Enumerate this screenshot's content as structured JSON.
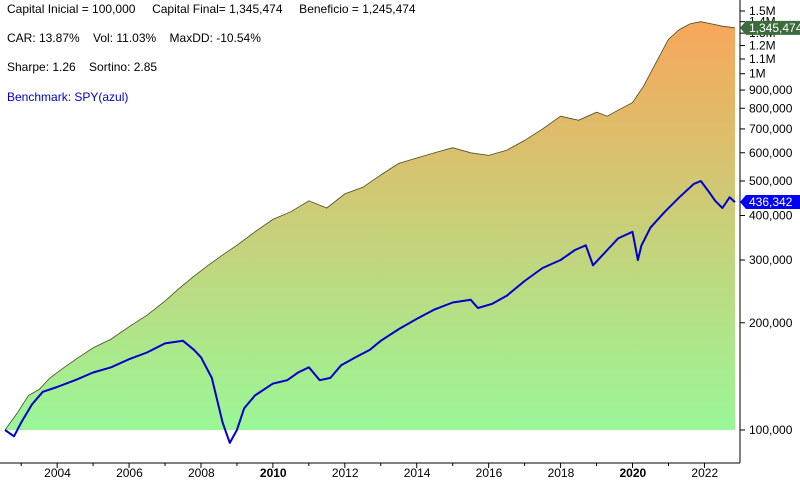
{
  "stats": {
    "line1": "Capital Inicial = 100,000     Capital Final= 1,345,474     Beneficio = 1,245,474",
    "line2": "CAR: 13.87%    Vol: 11.03%    MaxDD: -10.54%",
    "line3": "Sharpe: 1.26    Sortino: 2.85",
    "benchmark": "Benchmark: SPY(azul)"
  },
  "colors": {
    "equity_top": "#f7a75a",
    "equity_bottom": "#9af797",
    "equity_outline": "#4a4a2a",
    "benchmark_line": "#0000cc",
    "equity_label_bg": "#3c6b3c",
    "benchmark_label_bg": "#0000ff"
  },
  "chart_data": {
    "type": "area",
    "yscale": "log",
    "ylim": [
      90000,
      1500000
    ],
    "xlim": [
      2002.55,
      2022.85
    ],
    "yticks": [
      100000,
      200000,
      300000,
      400000,
      500000,
      600000,
      700000,
      800000,
      900000,
      1000000,
      1100000,
      1200000,
      1300000,
      1400000,
      1500000
    ],
    "ytick_labels": [
      "100,000",
      "200,000",
      "300,000",
      "400,000",
      "500,000",
      "600,000",
      "700,000",
      "800,000",
      "900,000",
      "1M",
      "1.1M",
      "1.2M",
      "1.3M",
      "1.4M",
      "1.5M"
    ],
    "xticks": [
      2004,
      2006,
      2008,
      2010,
      2012,
      2014,
      2016,
      2018,
      2020,
      2022
    ],
    "xtick_labels": [
      "2004",
      "2006",
      "2008",
      "2010",
      "2012",
      "2014",
      "2016",
      "2018",
      "2020",
      "2022"
    ],
    "xtick_bold": [
      "2010",
      "2020"
    ],
    "series": [
      {
        "name": "",
        "last_label": "1,345,474",
        "x": [
          2002.55,
          2002.9,
          2003.2,
          2003.5,
          2003.8,
          2004.2,
          2004.6,
          2005.0,
          2005.5,
          2006.0,
          2006.5,
          2007.0,
          2007.4,
          2007.8,
          2008.2,
          2008.6,
          2009.0,
          2009.5,
          2010.0,
          2010.5,
          2011.0,
          2011.5,
          2012.0,
          2012.5,
          2013.0,
          2013.5,
          2014.0,
          2014.5,
          2015.0,
          2015.5,
          2016.0,
          2016.5,
          2017.0,
          2017.5,
          2018.0,
          2018.5,
          2019.0,
          2019.3,
          2019.6,
          2020.0,
          2020.3,
          2020.6,
          2021.0,
          2021.3,
          2021.6,
          2021.9,
          2022.2,
          2022.5,
          2022.85
        ],
        "y": [
          100000,
          112000,
          125000,
          130000,
          140000,
          150000,
          160000,
          170000,
          180000,
          195000,
          210000,
          230000,
          250000,
          270000,
          290000,
          310000,
          330000,
          360000,
          390000,
          410000,
          440000,
          420000,
          460000,
          480000,
          520000,
          560000,
          580000,
          600000,
          620000,
          600000,
          590000,
          610000,
          650000,
          700000,
          760000,
          740000,
          780000,
          760000,
          790000,
          830000,
          920000,
          1050000,
          1250000,
          1330000,
          1380000,
          1400000,
          1380000,
          1360000,
          1345474
        ]
      },
      {
        "name": "SPY",
        "last_label": "436,342",
        "x": [
          2002.55,
          2002.8,
          2003.0,
          2003.3,
          2003.6,
          2004.0,
          2004.5,
          2005.0,
          2005.5,
          2006.0,
          2006.5,
          2007.0,
          2007.5,
          2007.8,
          2008.0,
          2008.3,
          2008.6,
          2008.8,
          2009.0,
          2009.2,
          2009.5,
          2010.0,
          2010.4,
          2010.7,
          2011.0,
          2011.3,
          2011.6,
          2011.9,
          2012.3,
          2012.7,
          2013.0,
          2013.5,
          2014.0,
          2014.5,
          2015.0,
          2015.5,
          2015.7,
          2016.1,
          2016.5,
          2017.0,
          2017.5,
          2018.0,
          2018.4,
          2018.7,
          2018.9,
          2019.3,
          2019.6,
          2020.0,
          2020.15,
          2020.25,
          2020.5,
          2020.9,
          2021.3,
          2021.7,
          2021.9,
          2022.1,
          2022.3,
          2022.5,
          2022.7,
          2022.85
        ],
        "y": [
          100000,
          96000,
          105000,
          118000,
          128000,
          132000,
          138000,
          145000,
          150000,
          158000,
          165000,
          175000,
          178000,
          168000,
          160000,
          140000,
          105000,
          92000,
          100000,
          115000,
          125000,
          135000,
          138000,
          145000,
          150000,
          138000,
          140000,
          152000,
          160000,
          168000,
          178000,
          192000,
          205000,
          218000,
          228000,
          232000,
          220000,
          226000,
          238000,
          262000,
          285000,
          300000,
          320000,
          330000,
          290000,
          320000,
          345000,
          360000,
          300000,
          330000,
          370000,
          410000,
          450000,
          490000,
          500000,
          470000,
          440000,
          420000,
          450000,
          436342
        ]
      }
    ]
  }
}
